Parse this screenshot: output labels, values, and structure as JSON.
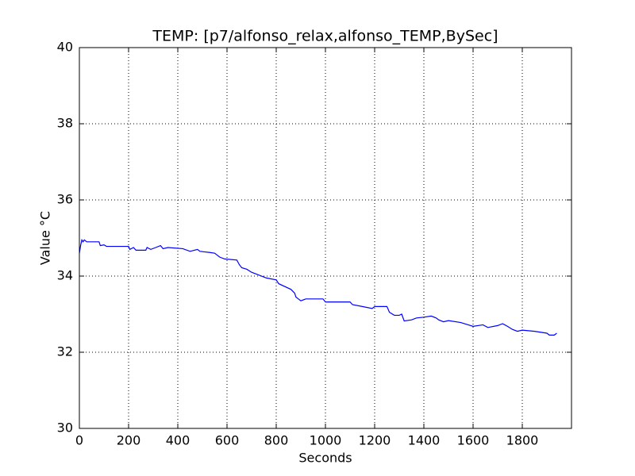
{
  "chart_data": {
    "type": "line",
    "title": "TEMP: [p7/alfonso_relax,alfonso_TEMP,BySec]",
    "xlabel": "Seconds",
    "ylabel": "Value °C",
    "x": [
      0,
      5,
      10,
      15,
      20,
      30,
      80,
      85,
      100,
      110,
      200,
      205,
      220,
      230,
      270,
      275,
      290,
      310,
      330,
      340,
      360,
      420,
      450,
      480,
      490,
      530,
      550,
      570,
      590,
      640,
      650,
      660,
      680,
      700,
      720,
      760,
      800,
      810,
      860,
      875,
      880,
      890,
      900,
      920,
      990,
      1000,
      1100,
      1110,
      1150,
      1190,
      1200,
      1250,
      1260,
      1280,
      1300,
      1310,
      1320,
      1350,
      1370,
      1400,
      1430,
      1450,
      1460,
      1480,
      1500,
      1550,
      1580,
      1600,
      1640,
      1660,
      1700,
      1720,
      1740,
      1760,
      1780,
      1800,
      1850,
      1900,
      1910,
      1930,
      1940
    ],
    "values": [
      34.6,
      34.8,
      34.95,
      34.9,
      34.95,
      34.9,
      34.9,
      34.8,
      34.82,
      34.78,
      34.78,
      34.7,
      34.75,
      34.68,
      34.68,
      34.75,
      34.7,
      34.75,
      34.8,
      34.72,
      34.75,
      34.72,
      34.65,
      34.7,
      34.65,
      34.62,
      34.6,
      34.5,
      34.45,
      34.42,
      34.3,
      34.22,
      34.18,
      34.1,
      34.05,
      33.95,
      33.9,
      33.8,
      33.65,
      33.55,
      33.45,
      33.4,
      33.35,
      33.4,
      33.4,
      33.32,
      33.32,
      33.25,
      33.2,
      33.15,
      33.2,
      33.2,
      33.05,
      32.97,
      32.97,
      33.0,
      32.82,
      32.85,
      32.9,
      32.92,
      32.95,
      32.9,
      32.85,
      32.8,
      32.83,
      32.78,
      32.72,
      32.68,
      32.72,
      32.65,
      32.7,
      32.75,
      32.68,
      32.6,
      32.55,
      32.58,
      32.55,
      32.5,
      32.45,
      32.45,
      32.5
    ],
    "color": "#0000ff",
    "xlim": [
      0,
      2000
    ],
    "xticks": [
      0,
      200,
      400,
      600,
      800,
      1000,
      1200,
      1400,
      1600,
      1800
    ],
    "ylim": [
      30,
      40
    ],
    "yticks": [
      30,
      32,
      34,
      36,
      38,
      40
    ],
    "grid": true
  }
}
